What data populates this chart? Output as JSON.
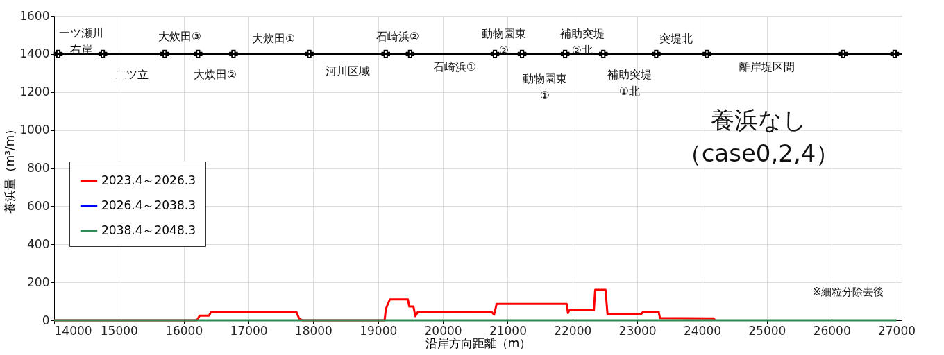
{
  "chart_data": {
    "type": "line",
    "xlabel": "沿岸方向距離（m）",
    "ylabel": "養浜量（m³/m）",
    "xlim": [
      14000,
      27080
    ],
    "ylim": [
      0,
      1600
    ],
    "xticks": [
      14000,
      15000,
      16000,
      17000,
      18000,
      19000,
      20000,
      21000,
      22000,
      23000,
      24000,
      25000,
      26000,
      27000
    ],
    "yticks": [
      0,
      200,
      400,
      600,
      800,
      1000,
      1200,
      1400,
      1600
    ],
    "grid": true,
    "legend": "left",
    "line_style": "solid",
    "marker": "none",
    "series": [
      {
        "name": "2023.4～2026.3",
        "color": "#ff0000",
        "x": [
          14000,
          16200,
          16219,
          16250,
          16390,
          16420,
          17740,
          17780,
          17830,
          19100,
          19120,
          19180,
          19460,
          19480,
          19545,
          19575,
          19610,
          20750,
          20790,
          20830,
          21910,
          21930,
          21950,
          22330,
          22350,
          22510,
          22540,
          23060,
          23090,
          23330,
          23350,
          24180,
          24200
        ],
        "values": [
          0,
          0,
          10,
          25,
          25,
          43,
          43,
          10,
          0,
          0,
          60,
          110,
          110,
          73,
          73,
          22,
          43,
          45,
          30,
          87,
          87,
          38,
          53,
          53,
          160,
          160,
          33,
          33,
          45,
          45,
          12,
          10,
          0
        ]
      },
      {
        "name": "2026.4～2038.3",
        "color": "#0000ff"
      },
      {
        "name": "2038.4～2048.3",
        "color": "#2e8b57",
        "x": [
          14000,
          27000
        ],
        "values": [
          0,
          0
        ]
      },
      {
        "type": "scatter",
        "marker": "cross",
        "color": "#000000",
        "x": [
          14064,
          14751,
          15706,
          16221,
          16768,
          17938,
          19118,
          19494,
          20803,
          21221,
          21886,
          22476,
          23292,
          24075,
          26178,
          26972
        ],
        "values": [
          1400,
          1400,
          1400,
          1400,
          1400,
          1400,
          1400,
          1400,
          1400,
          1400,
          1400,
          1400,
          1400,
          1400,
          1400,
          1400
        ]
      }
    ],
    "ref_lines": [
      {
        "axis": "y",
        "value": 1400,
        "color": "#000000",
        "line_style": "solid"
      }
    ],
    "annotations": [
      "養浜なし（case0,2,4）",
      "※細粒分除去後",
      "一ツ瀬川右岸",
      "大炊田③",
      "大炊田①",
      "石崎浜②",
      "動物園東②",
      "補助突堤②北",
      "突堤北",
      "二ツ立",
      "大炊田②",
      "河川区域",
      "石崎浜①",
      "動物園東①",
      "補助突堤①北",
      "離岸堤区間"
    ]
  }
}
